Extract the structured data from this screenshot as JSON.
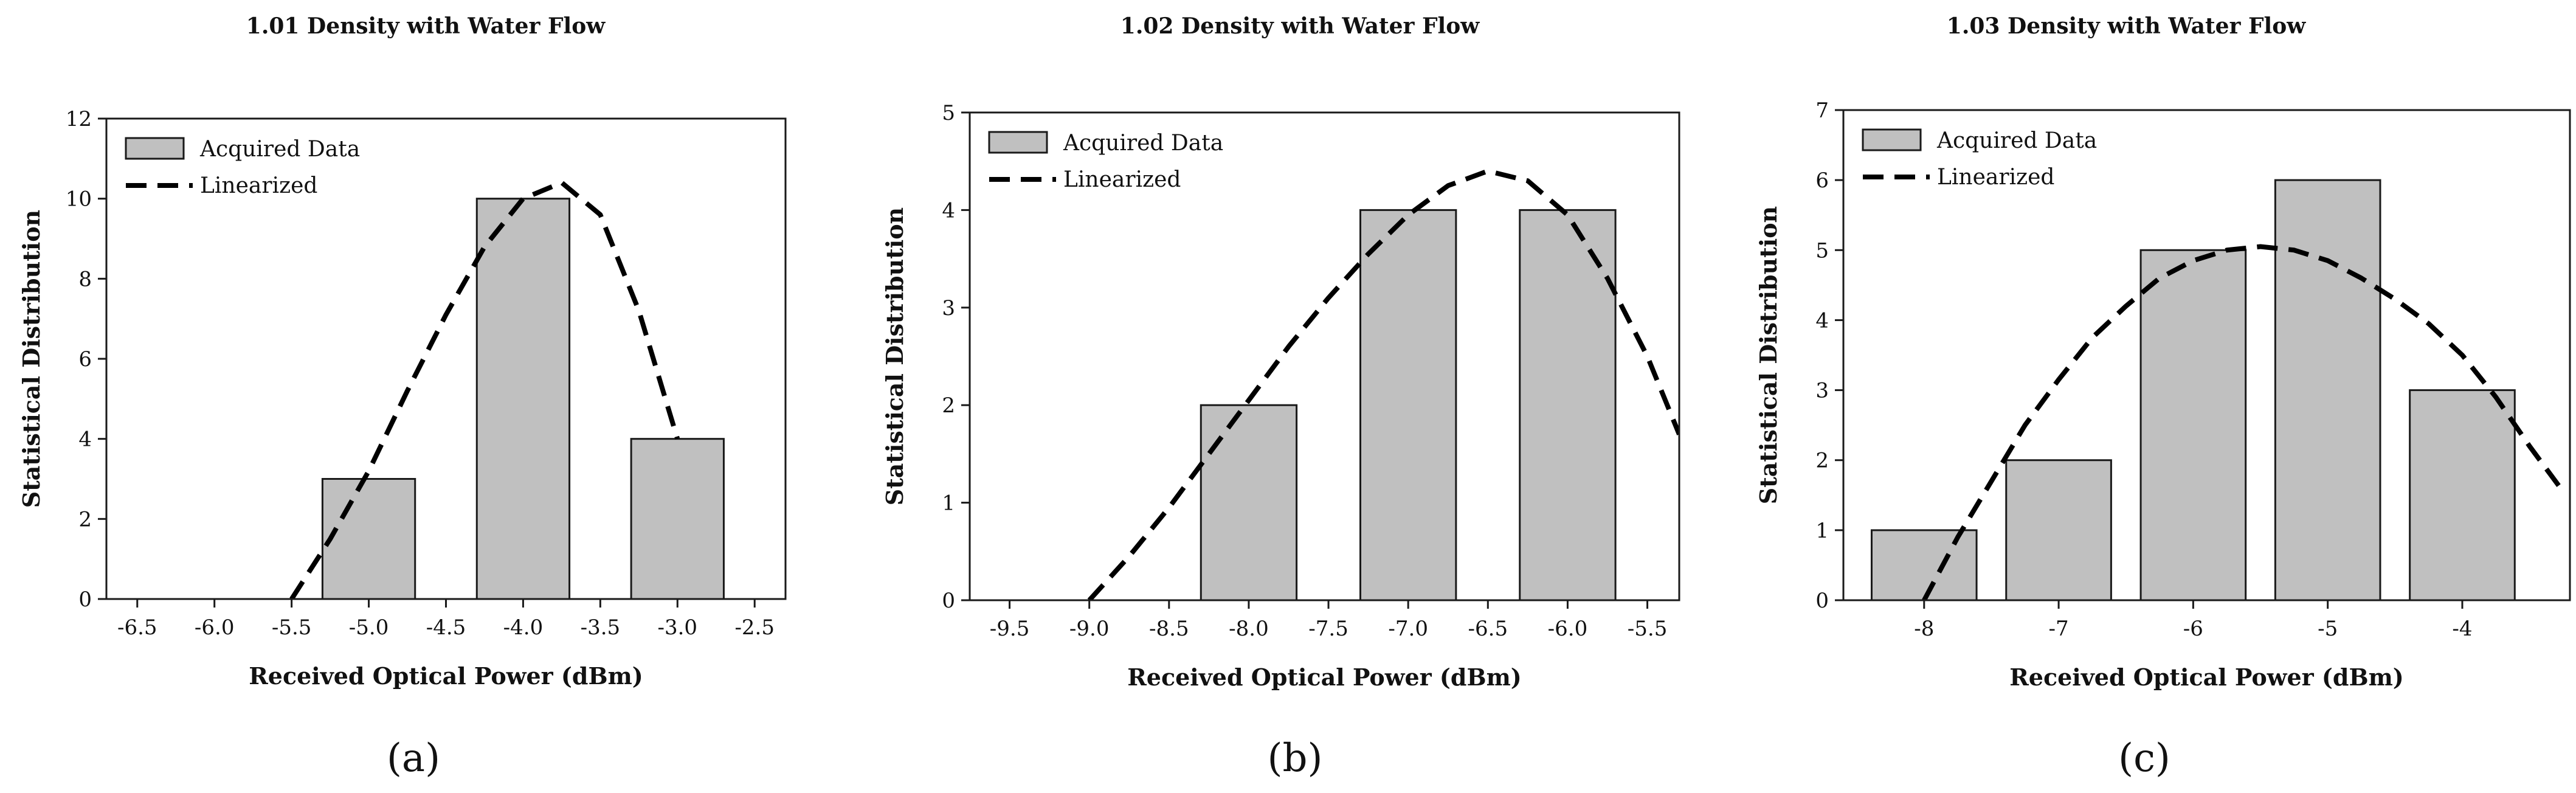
{
  "chart_data": [
    {
      "type": "bar",
      "title": "1.01 Density with Water Flow",
      "xlabel": "Received Optical Power (dBm)",
      "ylabel": "Statistical Distribution",
      "caption": "(a)",
      "xlim": [
        -6.7,
        -2.3
      ],
      "ylim": [
        0,
        12
      ],
      "xticks": [
        -6.5,
        -6.0,
        -5.5,
        -5.0,
        -4.5,
        -4.0,
        -3.5,
        -3.0,
        -2.5
      ],
      "xtick_labels": [
        "-6.5",
        "-6.0",
        "-5.5",
        "-5.0",
        "-4.5",
        "-4.0",
        "-3.5",
        "-3.0",
        "-2.5"
      ],
      "yticks": [
        0,
        2,
        4,
        6,
        8,
        10,
        12
      ],
      "ytick_labels": [
        "0",
        "2",
        "4",
        "6",
        "8",
        "10",
        "12"
      ],
      "bar_width": 0.6,
      "categories": [
        -5.0,
        -4.0,
        -3.0
      ],
      "values": [
        3,
        10,
        4
      ],
      "fit_curve": {
        "x": [
          -5.5,
          -5.25,
          -5.0,
          -4.75,
          -4.5,
          -4.25,
          -4.0,
          -3.75,
          -3.5,
          -3.25,
          -3.0
        ],
        "y": [
          0,
          1.5,
          3.2,
          5.2,
          7.1,
          8.8,
          10.0,
          10.4,
          9.6,
          7.2,
          4.0
        ]
      },
      "legend": [
        "Acquired Data",
        "Linearized"
      ],
      "legend_position": "top-left"
    },
    {
      "type": "bar",
      "title": "1.02 Density with Water Flow",
      "xlabel": "Received Optical Power (dBm)",
      "ylabel": "Statistical Distribution",
      "caption": "(b)",
      "xlim": [
        -9.75,
        -5.3
      ],
      "ylim": [
        0,
        5
      ],
      "xticks": [
        -9.5,
        -9.0,
        -8.5,
        -8.0,
        -7.5,
        -7.0,
        -6.5,
        -6.0,
        -5.5
      ],
      "xtick_labels": [
        "-9.5",
        "-9.0",
        "-8.5",
        "-8.0",
        "-7.5",
        "-7.0",
        "-6.5",
        "-6.0",
        "-5.5"
      ],
      "yticks": [
        0,
        1,
        2,
        3,
        4,
        5
      ],
      "ytick_labels": [
        "0",
        "1",
        "2",
        "3",
        "4",
        "5"
      ],
      "bar_width": 0.6,
      "categories": [
        -8.0,
        -7.0,
        -6.0
      ],
      "values": [
        2,
        4,
        4
      ],
      "fit_curve": {
        "x": [
          -9.0,
          -8.75,
          -8.5,
          -8.25,
          -8.0,
          -7.75,
          -7.5,
          -7.25,
          -7.0,
          -6.75,
          -6.5,
          -6.25,
          -6.0,
          -5.75,
          -5.5,
          -5.3
        ],
        "y": [
          0,
          0.45,
          0.95,
          1.5,
          2.05,
          2.6,
          3.1,
          3.55,
          3.95,
          4.25,
          4.4,
          4.3,
          3.95,
          3.3,
          2.5,
          1.7
        ]
      },
      "legend": [
        "Acquired Data",
        "Linearized"
      ],
      "legend_position": "top-left"
    },
    {
      "type": "bar",
      "title": "1.03 Density with Water Flow",
      "xlabel": "Received Optical Power (dBm)",
      "ylabel": "Statistical Distribution",
      "caption": "(c)",
      "xlim": [
        -8.6,
        -3.2
      ],
      "ylim": [
        0,
        7
      ],
      "xticks": [
        -8,
        -7,
        -6,
        -5,
        -4
      ],
      "xtick_labels": [
        "-8",
        "-7",
        "-6",
        "-5",
        "-4"
      ],
      "yticks": [
        0,
        1,
        2,
        3,
        4,
        5,
        6,
        7
      ],
      "ytick_labels": [
        "0",
        "1",
        "2",
        "3",
        "4",
        "5",
        "6",
        "7"
      ],
      "bar_width": 0.78,
      "categories": [
        -8,
        -7,
        -6,
        -5,
        -4
      ],
      "values": [
        1,
        2,
        5,
        6,
        3
      ],
      "fit_curve": {
        "x": [
          -8.0,
          -7.75,
          -7.5,
          -7.25,
          -7.0,
          -6.75,
          -6.5,
          -6.25,
          -6.0,
          -5.75,
          -5.5,
          -5.25,
          -5.0,
          -4.75,
          -4.5,
          -4.25,
          -4.0,
          -3.75,
          -3.5,
          -3.25
        ],
        "y": [
          0,
          0.9,
          1.7,
          2.5,
          3.15,
          3.75,
          4.2,
          4.6,
          4.85,
          5.0,
          5.05,
          5.0,
          4.85,
          4.6,
          4.3,
          3.95,
          3.5,
          2.9,
          2.2,
          1.55
        ]
      },
      "legend": [
        "Acquired Data",
        "Linearized"
      ],
      "legend_position": "top-left"
    }
  ]
}
